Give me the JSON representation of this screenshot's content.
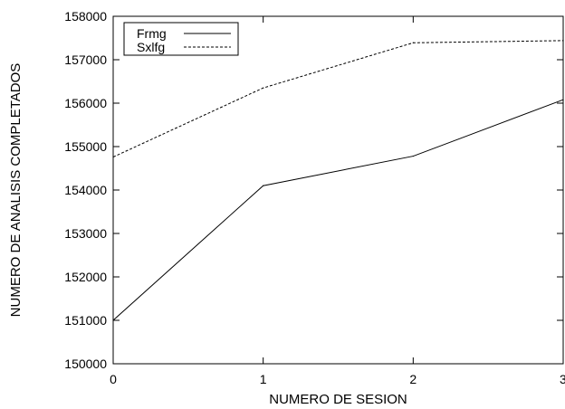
{
  "chart_data": {
    "type": "line",
    "title": "",
    "xlabel": "NUMERO DE SESION",
    "ylabel": "NUMERO DE ANALISIS COMPLETADOS",
    "xlim": [
      0,
      3
    ],
    "ylim": [
      150000,
      158000
    ],
    "x_ticks": [
      "0",
      "1",
      "2",
      "3"
    ],
    "y_ticks": [
      "150000",
      "151000",
      "152000",
      "153000",
      "154000",
      "155000",
      "156000",
      "157000",
      "158000"
    ],
    "grid": false,
    "legend_position": "top-left",
    "x": [
      0,
      1,
      2,
      3
    ],
    "series": [
      {
        "name": "Frmg",
        "style": "solid",
        "color": "#000000",
        "values": [
          151000,
          154100,
          154780,
          156080
        ]
      },
      {
        "name": "Sxlfg",
        "style": "dashed",
        "color": "#000000",
        "values": [
          154760,
          156350,
          157390,
          157440
        ]
      }
    ]
  }
}
